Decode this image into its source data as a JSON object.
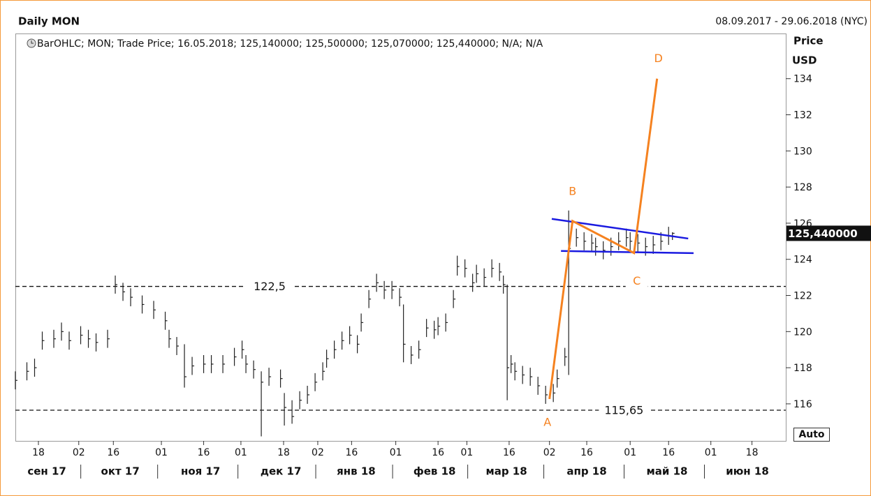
{
  "chart_data": {
    "type": "ohlc",
    "title": "Daily MON",
    "date_range": "08.09.2017 - 29.06.2018 (NYC)",
    "legend": "BarOHLC; MON; Trade Price; 16.05.2018; 125,140000; 125,500000; 125,070000; 125,440000; N/A; N/A",
    "y_axis_label": "Price",
    "y_axis_unit": "USD",
    "auto_button": "Auto",
    "color": "#222222",
    "xlim": [
      0,
      200.5
    ],
    "ylim": [
      113.95,
      136.5
    ],
    "yticks": [
      116,
      118,
      120,
      122,
      124,
      126,
      128,
      130,
      132,
      134
    ],
    "xticks": [
      {
        "value": 6,
        "label": "18"
      },
      {
        "value": 16.5,
        "label": "02"
      },
      {
        "value": 25.5,
        "label": "16"
      },
      {
        "value": 38,
        "label": "01"
      },
      {
        "value": 49,
        "label": "16"
      },
      {
        "value": 58.7,
        "label": "01"
      },
      {
        "value": 69.8,
        "label": "18"
      },
      {
        "value": 78.7,
        "label": "02"
      },
      {
        "value": 87.5,
        "label": "16"
      },
      {
        "value": 99,
        "label": "01"
      },
      {
        "value": 110,
        "label": "16"
      },
      {
        "value": 117.5,
        "label": "01"
      },
      {
        "value": 128.5,
        "label": "16"
      },
      {
        "value": 139,
        "label": "02"
      },
      {
        "value": 148.7,
        "label": "16"
      },
      {
        "value": 160,
        "label": "01"
      },
      {
        "value": 170,
        "label": "16"
      },
      {
        "value": 181,
        "label": "01"
      },
      {
        "value": 191.7,
        "label": "18"
      }
    ],
    "months": [
      {
        "value": 8.2,
        "label": "сен 17"
      },
      {
        "value": 27.3,
        "label": "окт 17"
      },
      {
        "value": 48.2,
        "label": "ноя 17"
      },
      {
        "value": 69.1,
        "label": "дек 17"
      },
      {
        "value": 88.7,
        "label": "янв 18"
      },
      {
        "value": 109.1,
        "label": "фев 18"
      },
      {
        "value": 127.8,
        "label": "мар 18"
      },
      {
        "value": 148.7,
        "label": "апр 18"
      },
      {
        "value": 169.6,
        "label": "май 18"
      },
      {
        "value": 190.5,
        "label": "июн 18"
      }
    ],
    "bars": {
      "x": [
        0,
        3,
        5,
        7,
        10,
        12,
        14,
        17,
        19,
        21,
        24,
        26,
        28,
        30,
        33,
        36,
        39,
        40,
        42,
        44,
        46,
        49,
        51,
        54,
        57,
        59,
        60,
        62,
        64,
        66,
        69,
        70,
        72,
        74,
        76,
        78,
        80,
        81,
        83,
        85,
        87,
        89,
        90,
        92,
        94,
        96,
        98,
        100,
        101,
        103,
        105,
        107,
        109,
        110,
        112,
        114,
        115,
        117,
        119,
        120,
        122,
        124,
        126,
        127,
        128,
        129,
        130,
        132,
        134,
        136,
        138,
        140,
        141,
        143,
        144,
        146,
        148,
        150,
        151,
        153,
        155,
        157,
        159,
        160,
        162,
        164,
        166,
        168,
        170,
        171
      ],
      "high": [
        117.8,
        118.3,
        118.5,
        120,
        120.1,
        120.5,
        120,
        120.3,
        120.1,
        119.9,
        120.1,
        123.1,
        122.7,
        122.4,
        122,
        121.7,
        121.1,
        120.1,
        119.7,
        119.3,
        118.6,
        118.7,
        118.7,
        118.7,
        119.1,
        119.5,
        118.7,
        118.4,
        117.8,
        118,
        117.9,
        116.6,
        116.2,
        116.7,
        117,
        117.7,
        118.3,
        119,
        119.5,
        120,
        120.3,
        119.8,
        121,
        122.3,
        123.2,
        122.8,
        122.8,
        122.4,
        121.5,
        119.2,
        119.5,
        120.7,
        120.6,
        120.8,
        121,
        122.3,
        124.2,
        124,
        123.2,
        123.7,
        123.5,
        124,
        123.8,
        123.1,
        122.6,
        118.7,
        118.3,
        118.1,
        118,
        117.5,
        117,
        117.1,
        117.9,
        119.1,
        126.7,
        125.7,
        125.5,
        125.4,
        125.2,
        125,
        125.2,
        125.5,
        125.7,
        125.5,
        125.4,
        125.2,
        125.3,
        125.5,
        125.8,
        125.5
      ],
      "low": [
        116.8,
        117.3,
        117.5,
        119,
        119.1,
        119.5,
        119,
        119.3,
        119.1,
        118.9,
        119.1,
        122.1,
        121.7,
        121.4,
        121,
        120.7,
        120.1,
        119.1,
        118.7,
        116.9,
        117.6,
        117.7,
        117.7,
        117.7,
        118.1,
        118.5,
        117.7,
        117.4,
        114.2,
        117,
        116.9,
        114.8,
        114.9,
        115.7,
        116,
        116.7,
        117.3,
        118,
        118.5,
        119,
        119.3,
        118.8,
        120,
        121.3,
        122.2,
        121.8,
        121.8,
        121.4,
        118.3,
        118.2,
        118.5,
        119.7,
        119.6,
        119.8,
        120,
        121.3,
        123.1,
        123,
        122.2,
        122.7,
        122.5,
        123,
        122.8,
        122.1,
        116.2,
        117.7,
        117.3,
        117.1,
        117,
        116.5,
        116,
        116.1,
        116.9,
        118.1,
        117.6,
        124.7,
        124.5,
        124.4,
        124.2,
        124,
        124.2,
        124.5,
        124.7,
        124.5,
        124.4,
        124.2,
        124.3,
        124.5,
        124.8,
        125.07
      ],
      "close": [
        117.3,
        117.8,
        118,
        119.5,
        119.6,
        120,
        119.5,
        119.8,
        119.6,
        119.4,
        119.6,
        122.6,
        122.2,
        121.9,
        121.5,
        121.2,
        120.6,
        119.6,
        119.2,
        117.5,
        118.1,
        118.2,
        118.2,
        118.2,
        118.6,
        119,
        118.2,
        117.9,
        117.2,
        117.5,
        117.4,
        115.8,
        115.3,
        116.2,
        116.5,
        117.2,
        117.8,
        118.5,
        119,
        119.5,
        119.8,
        119.3,
        120.5,
        121.8,
        122.7,
        122.3,
        122.3,
        121.9,
        119.3,
        118.7,
        119,
        120.2,
        120.1,
        120.3,
        120.5,
        121.8,
        123.6,
        123.5,
        122.7,
        123.2,
        123,
        123.5,
        123.3,
        122.6,
        118,
        118.2,
        117.8,
        117.6,
        117.5,
        117,
        116.5,
        116.6,
        117.4,
        118.6,
        124.6,
        125.2,
        125,
        124.9,
        124.7,
        124.5,
        124.7,
        125,
        125.2,
        125,
        124.9,
        124.7,
        124.8,
        125,
        125.3,
        125.44
      ]
    },
    "hlines": [
      {
        "value": 122.5,
        "label": "122,5"
      },
      {
        "value": 115.65,
        "label": "115,65"
      }
    ],
    "last_price": {
      "value": 125.44,
      "label": "125,440000"
    },
    "pattern": {
      "color": "#f58220",
      "points": [
        {
          "label": "A",
          "x": 139,
          "y": 116.27
        },
        {
          "label": "B",
          "x": 145,
          "y": 126.12
        },
        {
          "label": "C",
          "x": 161,
          "y": 124.35
        },
        {
          "label": "D",
          "x": 167,
          "y": 134.0
        }
      ]
    },
    "channel": {
      "color": "#1a1ae0",
      "lines": [
        {
          "x": [
            139.6,
            175.1
          ],
          "y": [
            126.24,
            125.15
          ]
        },
        {
          "x": [
            142,
            176.5
          ],
          "y": [
            124.46,
            124.34
          ]
        }
      ]
    }
  }
}
